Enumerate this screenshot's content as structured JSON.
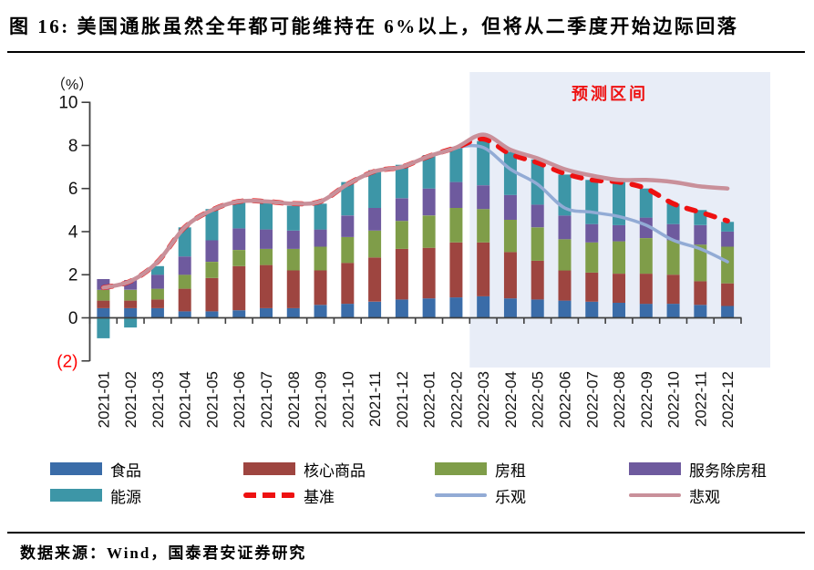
{
  "header": {
    "title": "图 16:  美国通胀虽然全年都可能维持在 6%以上，但将从二季度开始边际回落"
  },
  "footer": {
    "source": "数据来源：Wind，国泰君安证券研究"
  },
  "chart_data": {
    "type": "bar",
    "subtype": "stacked-bars-with-forecast-lines",
    "unit_label": "（%）",
    "forecast_region_label": "预测区间",
    "forecast_start_category": "2022-03",
    "ylim": [
      -2,
      10
    ],
    "ytick_values": [
      10,
      8,
      6,
      4,
      2,
      0,
      -2
    ],
    "ytick_labels": [
      "10",
      "8",
      "6",
      "4",
      "2",
      "0",
      "(2)"
    ],
    "grid": false,
    "legend_position": "bottom",
    "categories": [
      "2021-01",
      "2021-02",
      "2021-03",
      "2021-04",
      "2021-05",
      "2021-06",
      "2021-07",
      "2021-08",
      "2021-09",
      "2021-10",
      "2021-11",
      "2021-12",
      "2022-01",
      "2022-02",
      "2022-03",
      "2022-04",
      "2022-05",
      "2022-06",
      "2022-07",
      "2022-08",
      "2022-09",
      "2022-10",
      "2022-11",
      "2022-12"
    ],
    "bar_series": [
      {
        "key": "food",
        "name": "食品",
        "color": "#3A6CA8",
        "values": [
          0.45,
          0.45,
          0.45,
          0.3,
          0.3,
          0.35,
          0.45,
          0.45,
          0.6,
          0.65,
          0.75,
          0.85,
          0.9,
          0.95,
          1.0,
          0.9,
          0.85,
          0.8,
          0.75,
          0.7,
          0.65,
          0.65,
          0.6,
          0.55
        ]
      },
      {
        "key": "core-goods",
        "name": "核心商品",
        "color": "#9E4540",
        "values": [
          0.35,
          0.35,
          0.4,
          1.05,
          1.55,
          2.05,
          2.0,
          1.75,
          1.6,
          1.9,
          2.05,
          2.35,
          2.35,
          2.55,
          2.5,
          2.15,
          1.8,
          1.4,
          1.35,
          1.35,
          1.4,
          1.35,
          1.1,
          1.05
        ]
      },
      {
        "key": "rent",
        "name": "房租",
        "color": "#7F9D49",
        "values": [
          0.5,
          0.5,
          0.5,
          0.65,
          0.75,
          0.75,
          0.75,
          1.0,
          1.1,
          1.2,
          1.25,
          1.3,
          1.5,
          1.6,
          1.55,
          1.5,
          1.55,
          1.45,
          1.4,
          1.5,
          1.65,
          1.6,
          1.7,
          1.7
        ]
      },
      {
        "key": "services-ex-rent",
        "name": "服务除房租",
        "color": "#6E5A9E",
        "values": [
          0.5,
          0.45,
          0.65,
          0.85,
          1.0,
          1.0,
          0.9,
          0.85,
          0.8,
          1.0,
          1.05,
          1.05,
          1.25,
          1.2,
          1.1,
          1.15,
          1.05,
          1.1,
          0.85,
          0.75,
          0.95,
          0.75,
          0.9,
          0.7
        ]
      },
      {
        "key": "energy",
        "name": "能源",
        "color": "#3D96A7",
        "values": [
          -0.95,
          -0.45,
          0.4,
          1.35,
          1.45,
          1.25,
          1.25,
          1.15,
          1.2,
          1.55,
          1.75,
          1.55,
          1.55,
          1.6,
          2.05,
          2.0,
          2.1,
          1.9,
          2.05,
          2.0,
          1.35,
          0.95,
          0.7,
          0.45
        ]
      }
    ],
    "line_series": [
      {
        "key": "optimistic",
        "name": "乐观",
        "color": "#92ABD5",
        "style": "solid",
        "width": 3.5,
        "values": [
          1.4,
          1.7,
          2.6,
          4.2,
          5.0,
          5.4,
          5.4,
          5.3,
          5.4,
          6.2,
          6.8,
          7.0,
          7.5,
          7.9,
          7.9,
          6.9,
          6.2,
          5.1,
          4.9,
          4.7,
          4.3,
          3.6,
          3.2,
          2.6
        ]
      },
      {
        "key": "baseline",
        "name": "基准",
        "color": "#EE1111",
        "style": "dashed",
        "width": 5.5,
        "values": [
          1.4,
          1.7,
          2.6,
          4.2,
          5.0,
          5.4,
          5.4,
          5.3,
          5.4,
          6.2,
          6.8,
          7.0,
          7.5,
          7.9,
          8.3,
          7.6,
          7.2,
          6.7,
          6.4,
          6.3,
          6.0,
          5.3,
          4.9,
          4.5
        ]
      },
      {
        "key": "pessimistic",
        "name": "悲观",
        "color": "#C9909A",
        "style": "solid",
        "width": 4.5,
        "values": [
          1.4,
          1.7,
          2.6,
          4.2,
          5.0,
          5.4,
          5.4,
          5.3,
          5.4,
          6.2,
          6.8,
          7.0,
          7.5,
          7.9,
          8.5,
          7.8,
          7.4,
          6.9,
          6.6,
          6.4,
          6.4,
          6.3,
          6.1,
          6.0
        ]
      }
    ],
    "colors": {
      "forecast_shade": "#E8EDF7",
      "axis": "#3F3F3F",
      "tick_label": "#111111",
      "negative_tick_label": "#FF0000",
      "forecast_label": "#EE1111"
    }
  },
  "legend": {
    "items": [
      {
        "key": "food",
        "label": "食品",
        "swatch": "bar",
        "color": "#3A6CA8"
      },
      {
        "key": "core-goods",
        "label": "核心商品",
        "swatch": "bar",
        "color": "#9E4540"
      },
      {
        "key": "rent",
        "label": "房租",
        "swatch": "bar",
        "color": "#7F9D49"
      },
      {
        "key": "services-ex-rent",
        "label": "服务除房租",
        "swatch": "bar",
        "color": "#6E5A9E"
      },
      {
        "key": "energy",
        "label": "能源",
        "swatch": "bar",
        "color": "#3D96A7"
      },
      {
        "key": "baseline",
        "label": "基准",
        "swatch": "dash",
        "color": "#EE1111"
      },
      {
        "key": "optimistic",
        "label": "乐观",
        "swatch": "line",
        "color": "#92ABD5"
      },
      {
        "key": "pessimistic",
        "label": "悲观",
        "swatch": "line",
        "color": "#C9909A"
      }
    ]
  }
}
